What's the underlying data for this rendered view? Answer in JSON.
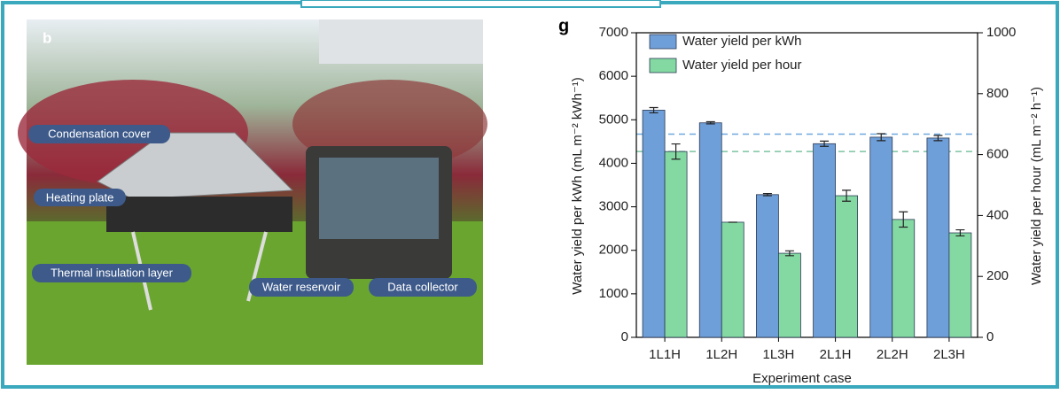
{
  "photo": {
    "panel_label": "b",
    "labels": [
      "Condensation cover",
      "Heating plate",
      "Thermal insulation layer",
      "Water reservoir",
      "Data collector"
    ]
  },
  "chart_data": {
    "type": "bar",
    "panel_label": "g",
    "categories": [
      "1L1H",
      "1L2H",
      "1L3H",
      "2L1H",
      "2L2H",
      "2L3H"
    ],
    "series": [
      {
        "name": "Water yield per kWh",
        "color": "#6f9fd8",
        "values": [
          5220,
          4930,
          3280,
          4450,
          4600,
          4580
        ],
        "errors": [
          60,
          25,
          25,
          60,
          80,
          60
        ]
      },
      {
        "name": "Water yield per hour",
        "color": "#84d9a2",
        "axis": "y2",
        "values": [
          610,
          378,
          276,
          465,
          387,
          343
        ],
        "errors": [
          25,
          0,
          8,
          18,
          25,
          10
        ]
      }
    ],
    "xlabel": "Experiment case",
    "ylabel": "Water yield per kWh (mL m⁻² kWh⁻¹)",
    "y2label": "Water yield per hour (mL m⁻² h⁻¹)",
    "ylim": [
      0,
      7000
    ],
    "yticks": [
      0,
      1000,
      2000,
      3000,
      4000,
      5000,
      6000,
      7000
    ],
    "y2lim": [
      0,
      1000
    ],
    "y2ticks": [
      0,
      200,
      400,
      600,
      800,
      1000
    ],
    "reference_lines": [
      {
        "value": 4670,
        "color": "#6fa8dc"
      },
      {
        "value": 610,
        "axis": "y2",
        "color": "#7cc4a0"
      }
    ],
    "legend": "upper left"
  }
}
